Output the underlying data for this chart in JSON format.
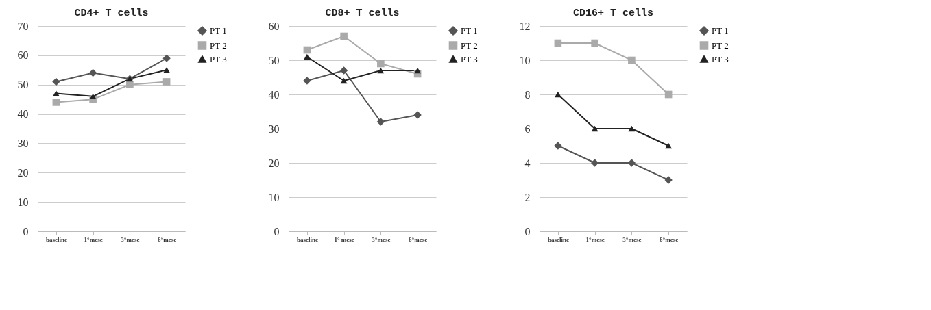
{
  "chart_data": [
    {
      "type": "line",
      "title": "CD4+ T cells",
      "categories": [
        "baseline",
        "1°mese",
        "3°mese",
        "6°mese"
      ],
      "ylim": [
        0,
        70
      ],
      "yticks": [
        0,
        10,
        20,
        30,
        40,
        50,
        60,
        70
      ],
      "grid": "y",
      "legend": "right",
      "series": [
        {
          "name": "PT 1",
          "color": "#555555",
          "marker": "diamond",
          "values": [
            51,
            54,
            52,
            59
          ]
        },
        {
          "name": "PT 2",
          "color": "#aaaaaa",
          "marker": "square",
          "values": [
            44,
            45,
            50,
            51
          ]
        },
        {
          "name": "PT 3",
          "color": "#222222",
          "marker": "triangle",
          "values": [
            47,
            46,
            52,
            55
          ]
        }
      ]
    },
    {
      "type": "line",
      "title": "CD8+ T cells",
      "categories": [
        "baseline",
        "1° mese",
        "3°mese",
        "6°mese"
      ],
      "ylim": [
        0,
        60
      ],
      "yticks": [
        0,
        10,
        20,
        30,
        40,
        50,
        60
      ],
      "grid": "y",
      "legend": "right",
      "series": [
        {
          "name": "PT 1",
          "color": "#555555",
          "marker": "diamond",
          "values": [
            44,
            47,
            32,
            34
          ]
        },
        {
          "name": "PT 2",
          "color": "#aaaaaa",
          "marker": "square",
          "values": [
            53,
            57,
            49,
            46
          ]
        },
        {
          "name": "PT 3",
          "color": "#222222",
          "marker": "triangle",
          "values": [
            51,
            44,
            47,
            47
          ]
        }
      ]
    },
    {
      "type": "line",
      "title": "CD16+ T cells",
      "categories": [
        "baseline",
        "1°mese",
        "3°mese",
        "6°mese"
      ],
      "ylim": [
        0,
        12
      ],
      "yticks": [
        0,
        2,
        4,
        6,
        8,
        10,
        12
      ],
      "grid": "y",
      "legend": "right",
      "series": [
        {
          "name": "PT 1",
          "color": "#555555",
          "marker": "diamond",
          "values": [
            5,
            4,
            4,
            3
          ]
        },
        {
          "name": "PT 2",
          "color": "#aaaaaa",
          "marker": "square",
          "values": [
            11,
            11,
            10,
            8
          ]
        },
        {
          "name": "PT 3",
          "color": "#222222",
          "marker": "triangle",
          "values": [
            8,
            6,
            6,
            5
          ]
        }
      ]
    }
  ]
}
